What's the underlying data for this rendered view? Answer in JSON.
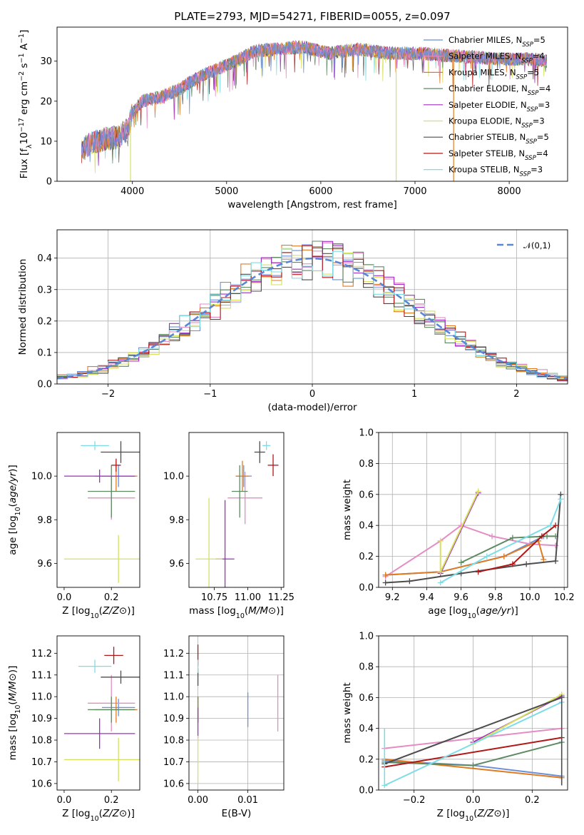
{
  "colors": {
    "Chabrier MILES": "#6a8fd8",
    "Salpeter MILES": "#e48cc4",
    "Kroupa MILES": "#e07b22",
    "Chabrier ELODIE": "#5e8a62",
    "Salpeter ELODIE": "#a02cc6",
    "Kroupa ELODIE": "#d6e15c",
    "Chabrier STELIB": "#4d4d4d",
    "Salpeter STELIB": "#b11717",
    "Kroupa STELIB": "#7ddde6"
  },
  "chart_data": [
    {
      "id": "spectrum",
      "type": "line",
      "title": "PLATE=2793, MJD=54271, FIBERID=0055, z=0.097",
      "xlabel": "wavelength [Angstrom, rest frame]",
      "ylabel": "Flux [f_λ10^-17 erg cm^-2 s^-1 A^-1]",
      "xlim": [
        3200,
        8620
      ],
      "ylim": [
        0,
        38.5
      ],
      "xticks": [
        4000,
        5000,
        6000,
        7000,
        8000
      ],
      "yticks": [
        0,
        10,
        20,
        30
      ],
      "legend_position": "upper right",
      "grid": false,
      "continuum": {
        "x": [
          3460,
          3550,
          3700,
          3850,
          3950,
          4000,
          4100,
          4300,
          4500,
          4700,
          4900,
          5100,
          5300,
          5500,
          5800,
          6100,
          6400,
          6700,
          7000,
          7300,
          7600,
          7900,
          8200,
          8400
        ],
        "y": [
          7.5,
          9.5,
          10.5,
          11,
          13,
          17,
          20,
          21,
          23,
          26,
          28,
          30,
          32.5,
          33,
          33.5,
          32,
          33,
          32,
          32,
          31.5,
          31,
          30.5,
          30.5,
          30
        ]
      },
      "dips": [
        {
          "x": 6800,
          "to": 0,
          "series": "Kroupa ELODIE"
        },
        {
          "x": 7410,
          "to": 0,
          "series": "Kroupa MILES"
        },
        {
          "x": 3980,
          "to": 0,
          "series": "Kroupa ELODIE"
        }
      ],
      "series": [
        {
          "name": "Chabrier MILES",
          "nssp": "5"
        },
        {
          "name": "Salpeter MILES",
          "nssp": "4"
        },
        {
          "name": "Kroupa MILES",
          "nssp": "5"
        },
        {
          "name": "Chabrier ELODIE",
          "nssp": "4"
        },
        {
          "name": "Salpeter ELODIE",
          "nssp": "3"
        },
        {
          "name": "Kroupa ELODIE",
          "nssp": "3"
        },
        {
          "name": "Chabrier STELIB",
          "nssp": "5"
        },
        {
          "name": "Salpeter STELIB",
          "nssp": "4"
        },
        {
          "name": "Kroupa STELIB",
          "nssp": "3"
        }
      ]
    },
    {
      "id": "residuals",
      "type": "line",
      "xlabel": "(data-model)/error",
      "ylabel": "Normed distribution",
      "xlim": [
        -2.5,
        2.5
      ],
      "ylim": [
        0,
        0.49
      ],
      "xticks": [
        -2,
        -1,
        0,
        1,
        2
      ],
      "yticks": [
        0.0,
        0.1,
        0.2,
        0.3,
        0.4
      ],
      "grid": true,
      "legend": "𝒩(0,1)",
      "bin_width": 0.1,
      "model_curve": "gaussian mean 0 sigma 1"
    },
    {
      "id": "age_vs_Z",
      "type": "scatter",
      "xlabel": "Z [log10(Z/Z⊙)]",
      "ylabel": "age [log10(age/yr)]",
      "xlim": [
        -0.03,
        0.32
      ],
      "ylim": [
        9.49,
        10.2
      ],
      "xticks": [
        0.0,
        0.2
      ],
      "yticks": [
        9.6,
        9.8,
        10.0
      ],
      "points": [
        {
          "series": "Chabrier MILES",
          "x": 0.23,
          "xerr": 0.07,
          "y": 10.0,
          "yerr": 0.05
        },
        {
          "series": "Salpeter MILES",
          "x": 0.2,
          "xerr": 0.1,
          "y": 9.9,
          "yerr": 0.1
        },
        {
          "series": "Kroupa MILES",
          "x": 0.22,
          "xerr": 0.09,
          "y": 10.0,
          "yerr": 0.07
        },
        {
          "series": "Chabrier ELODIE",
          "x": 0.2,
          "xerr": 0.1,
          "y": 9.93,
          "yerr": 0.12
        },
        {
          "series": "Salpeter ELODIE",
          "x": 0.15,
          "xerr": 0.15,
          "y": 10.0,
          "yerr": 0.03
        },
        {
          "series": "Kroupa ELODIE",
          "x": 0.23,
          "xerr": 0.23,
          "y": 9.62,
          "yerr": 0.11
        },
        {
          "series": "Chabrier STELIB",
          "x": 0.24,
          "xerr": 0.085,
          "y": 10.11,
          "yerr": 0.05
        },
        {
          "series": "Salpeter STELIB",
          "x": 0.22,
          "xerr": 0.02,
          "y": 10.05,
          "yerr": 0.03
        },
        {
          "series": "Kroupa STELIB",
          "x": 0.13,
          "xerr": 0.06,
          "y": 10.14,
          "yerr": 0.02
        }
      ]
    },
    {
      "id": "age_vs_mass",
      "type": "scatter",
      "xlabel": "mass [log10(M/M⊙)]",
      "ylabel": "",
      "xlim": [
        10.56,
        11.27
      ],
      "ylim": [
        9.49,
        10.2
      ],
      "xticks": [
        10.75,
        11.0,
        11.25
      ],
      "yticks": [
        9.6,
        9.8,
        10.0
      ],
      "points": [
        {
          "series": "Chabrier MILES",
          "x": 10.97,
          "xerr": 0.06,
          "y": 10.0,
          "yerr": 0.05
        },
        {
          "series": "Salpeter MILES",
          "x": 10.98,
          "xerr": 0.13,
          "y": 9.9,
          "yerr": 0.12
        },
        {
          "series": "Kroupa MILES",
          "x": 10.96,
          "xerr": 0.05,
          "y": 10.0,
          "yerr": 0.07
        },
        {
          "series": "Chabrier ELODIE",
          "x": 10.94,
          "xerr": 0.06,
          "y": 9.93,
          "yerr": 0.12
        },
        {
          "series": "Salpeter ELODIE",
          "x": 10.83,
          "xerr": 0.07,
          "y": 9.62,
          "yerr": 0.27
        },
        {
          "series": "Kroupa ELODIE",
          "x": 10.71,
          "xerr": 0.1,
          "y": 9.62,
          "yerr": 0.28
        },
        {
          "series": "Chabrier STELIB",
          "x": 11.09,
          "xerr": 0.04,
          "y": 10.11,
          "yerr": 0.05
        },
        {
          "series": "Salpeter STELIB",
          "x": 11.19,
          "xerr": 0.04,
          "y": 10.05,
          "yerr": 0.05
        },
        {
          "series": "Kroupa STELIB",
          "x": 11.14,
          "xerr": 0.03,
          "y": 10.14,
          "yerr": 0.02
        }
      ]
    },
    {
      "id": "weight_vs_age",
      "type": "line",
      "xlabel": "age [log10(age/yr)]",
      "ylabel": "mass weight",
      "xlim": [
        9.12,
        10.22
      ],
      "ylim": [
        0.0,
        1.0
      ],
      "xticks": [
        9.2,
        9.4,
        9.6,
        9.8,
        10.0,
        10.2
      ],
      "yticks": [
        0.0,
        0.2,
        0.4,
        0.6,
        0.8,
        1.0
      ],
      "grid": true,
      "lines": [
        {
          "series": "Chabrier MILES",
          "x": [
            9.16,
            9.48,
            9.85,
            10.08
          ],
          "y": [
            0.08,
            0.1,
            0.2,
            0.33
          ]
        },
        {
          "series": "Salpeter MILES",
          "x": [
            9.16,
            9.48,
            9.6,
            9.78,
            10.0,
            10.15
          ],
          "y": [
            0.07,
            0.3,
            0.4,
            0.33,
            0.28,
            0.27
          ]
        },
        {
          "series": "Kroupa MILES",
          "x": [
            9.16,
            9.48,
            9.85,
            10.05,
            10.08
          ],
          "y": [
            0.08,
            0.1,
            0.2,
            0.3,
            0.18
          ]
        },
        {
          "series": "Chabrier ELODIE",
          "x": [
            9.6,
            9.9,
            10.1,
            10.15
          ],
          "y": [
            0.16,
            0.32,
            0.33,
            0.33
          ]
        },
        {
          "series": "Salpeter ELODIE",
          "x": [
            9.48,
            9.7
          ],
          "y": [
            0.09,
            0.61
          ]
        },
        {
          "series": "Kroupa ELODIE",
          "x": [
            9.48,
            9.48,
            9.7
          ],
          "y": [
            0.3,
            0.1,
            0.62
          ]
        },
        {
          "series": "Chabrier STELIB",
          "x": [
            9.16,
            9.3,
            9.6,
            9.98,
            10.15,
            10.18
          ],
          "y": [
            0.03,
            0.04,
            0.09,
            0.15,
            0.17,
            0.6
          ]
        },
        {
          "series": "Salpeter STELIB",
          "x": [
            9.7,
            9.9,
            10.07,
            10.15
          ],
          "y": [
            0.1,
            0.15,
            0.33,
            0.4
          ]
        },
        {
          "series": "Kroupa STELIB",
          "x": [
            9.48,
            9.75,
            10.12,
            10.18
          ],
          "y": [
            0.03,
            0.2,
            0.4,
            0.57
          ]
        }
      ]
    },
    {
      "id": "mass_vs_Z",
      "type": "scatter",
      "xlabel": "Z [log10(Z/Z⊙)]",
      "ylabel": "mass [log10(M/M⊙)]",
      "xlim": [
        -0.03,
        0.32
      ],
      "ylim": [
        10.57,
        11.28
      ],
      "xticks": [
        0.0,
        0.2
      ],
      "yticks": [
        10.6,
        10.7,
        10.8,
        10.9,
        11.0,
        11.1,
        11.2
      ],
      "points": [
        {
          "series": "Chabrier MILES",
          "x": 0.23,
          "xerr": 0.07,
          "y": 10.95,
          "yerr": 0.04
        },
        {
          "series": "Salpeter MILES",
          "x": 0.2,
          "xerr": 0.1,
          "y": 10.97,
          "yerr": 0.13
        },
        {
          "series": "Kroupa MILES",
          "x": 0.22,
          "xerr": 0.09,
          "y": 10.94,
          "yerr": 0.06
        },
        {
          "series": "Chabrier ELODIE",
          "x": 0.2,
          "xerr": 0.1,
          "y": 10.94,
          "yerr": 0.06
        },
        {
          "series": "Salpeter ELODIE",
          "x": 0.15,
          "xerr": 0.15,
          "y": 10.83,
          "yerr": 0.07
        },
        {
          "series": "Kroupa ELODIE",
          "x": 0.23,
          "xerr": 0.23,
          "y": 10.71,
          "yerr": 0.1
        },
        {
          "series": "Chabrier STELIB",
          "x": 0.24,
          "xerr": 0.085,
          "y": 11.09,
          "yerr": 0.03
        },
        {
          "series": "Salpeter STELIB",
          "x": 0.21,
          "xerr": 0.04,
          "y": 11.19,
          "yerr": 0.04
        },
        {
          "series": "Kroupa STELIB",
          "x": 0.13,
          "xerr": 0.07,
          "y": 11.14,
          "yerr": 0.03
        }
      ]
    },
    {
      "id": "mass_vs_ebv",
      "type": "scatter",
      "xlabel": "E(B-V)",
      "ylabel": "",
      "xlim": [
        -0.0018,
        0.0172
      ],
      "ylim": [
        10.57,
        11.28
      ],
      "xticks": [
        0.0,
        0.01
      ],
      "yticks": [
        10.6,
        10.7,
        10.8,
        10.9,
        11.0,
        11.1,
        11.2
      ],
      "grid": true,
      "points": [
        {
          "series": "Chabrier MILES",
          "x": 0.01,
          "y": 10.94,
          "yerr": 0.08
        },
        {
          "series": "Salpeter MILES",
          "x": 0.016,
          "y": 10.97,
          "yerr": 0.13
        },
        {
          "series": "Kroupa MILES",
          "x": 0.0,
          "y": 10.94,
          "yerr": 0.06
        },
        {
          "series": "Chabrier ELODIE",
          "x": 0.0,
          "y": 10.94,
          "yerr": 0.06
        },
        {
          "series": "Salpeter ELODIE",
          "x": 0.0,
          "y": 10.88,
          "yerr": 0.07
        },
        {
          "series": "Kroupa ELODIE",
          "x": 0.0,
          "y": 10.71,
          "yerr": 0.11
        },
        {
          "series": "Chabrier STELIB",
          "x": 0.0,
          "y": 11.09,
          "yerr": 0.04
        },
        {
          "series": "Salpeter STELIB",
          "x": 0.0,
          "y": 11.19,
          "yerr": 0.05
        },
        {
          "series": "Kroupa STELIB",
          "x": 0.0,
          "y": 11.14,
          "yerr": 0.03
        }
      ]
    },
    {
      "id": "weight_vs_Z",
      "type": "line",
      "xlabel": "Z [log10(Z/Z⊙)]",
      "ylabel": "mass weight",
      "xlim": [
        -0.32,
        0.32
      ],
      "ylim": [
        0.0,
        1.0
      ],
      "xticks": [
        -0.2,
        0.0,
        0.2
      ],
      "yticks": [
        0.0,
        0.2,
        0.4,
        0.6,
        0.8,
        1.0
      ],
      "grid": true,
      "lines": [
        {
          "series": "Chabrier MILES",
          "x": [
            -0.3,
            0.0,
            0.3
          ],
          "y": [
            0.19,
            0.16,
            0.09
          ]
        },
        {
          "series": "Salpeter MILES",
          "x": [
            -0.3,
            0.3
          ],
          "y": [
            0.27,
            0.4
          ]
        },
        {
          "series": "Kroupa MILES",
          "x": [
            -0.3,
            0.3
          ],
          "y": [
            0.2,
            0.08
          ]
        },
        {
          "series": "Chabrier ELODIE",
          "x": [
            -0.3,
            0.0,
            0.3
          ],
          "y": [
            0.18,
            0.16,
            0.31
          ]
        },
        {
          "series": "Salpeter ELODIE",
          "x": [
            0.0,
            0.3
          ],
          "y": [
            0.31,
            0.61
          ]
        },
        {
          "series": "Kroupa ELODIE",
          "x": [
            0.0,
            0.3
          ],
          "y": [
            0.3,
            0.62
          ]
        },
        {
          "series": "Chabrier STELIB",
          "x": [
            -0.3,
            0.3
          ],
          "y": [
            0.17,
            0.6
          ]
        },
        {
          "series": "Salpeter STELIB",
          "x": [
            -0.3,
            0.3
          ],
          "y": [
            0.15,
            0.34
          ]
        },
        {
          "series": "Kroupa STELIB",
          "x": [
            -0.3,
            0.3
          ],
          "y": [
            0.03,
            0.57
          ]
        }
      ],
      "vertical_ticks": [
        {
          "series": "Kroupa STELIB",
          "x": -0.3,
          "y": [
            0.03,
            0.4
          ]
        },
        {
          "series": "Chabrier STELIB",
          "x": 0.3,
          "y": [
            0.03,
            0.6
          ]
        }
      ]
    }
  ]
}
